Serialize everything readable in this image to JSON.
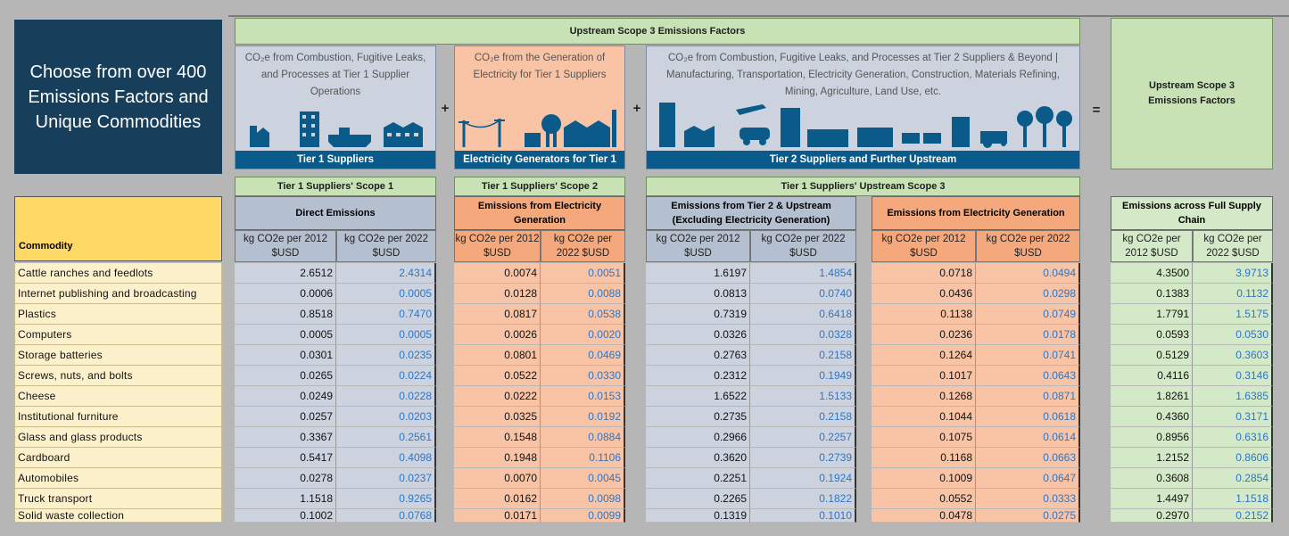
{
  "banner": {
    "text": "Choose from over 400 Emissions Factors and Unique Commodities"
  },
  "upstream_header": "Upstream Scope 3 Emissions Factors",
  "panels": {
    "tier1": {
      "desc": "CO₂e from Combustion, Fugitive Leaks, and Processes at Tier 1 Supplier Operations",
      "foot": "Tier 1 Suppliers"
    },
    "electricity": {
      "desc": "CO₂e from the Generation of Electricity for Tier 1 Suppliers",
      "foot": "Electricity Generators for Tier 1"
    },
    "tier2": {
      "desc": "CO₂e from Combustion, Fugitive Leaks, and Processes at Tier 2 Suppliers & Beyond | Manufacturing, Transportation, Electricity Generation, Construction, Materials Refining, Mining, Agriculture, Land Use, etc.",
      "foot": "Tier 2 Suppliers and Further Upstream"
    }
  },
  "operators": {
    "plus1": "+",
    "plus2": "+",
    "equals": "="
  },
  "total_header": "Upstream Scope 3 Emissions Factors",
  "sections": {
    "scope1": "Tier 1 Suppliers' Scope 1",
    "scope2": "Tier 1 Suppliers' Scope 2",
    "upstream": "Tier 1 Suppliers' Upstream Scope 3"
  },
  "subheaders": {
    "direct": "Direct Emissions",
    "electricity": "Emissions from Electricity Generation",
    "tier2": "Emissions from Tier 2 & Upstream (Excluding Electricity Generation)",
    "elec_gen": "Emissions from Electricity Generation",
    "full": "Emissions across Full Supply Chain"
  },
  "units": {
    "u2012": "kg CO2e per 2012 $USD",
    "u2022": "kg CO2e per 2022 $USD"
  },
  "commodity_label": "Commodity",
  "rows": [
    {
      "name": "Cattle ranches and feedlots",
      "v": [
        "2.6512",
        "2.4314",
        "0.0074",
        "0.0051",
        "1.6197",
        "1.4854",
        "0.0718",
        "0.0494",
        "4.3500",
        "3.9713"
      ]
    },
    {
      "name": "Internet publishing and broadcasting",
      "v": [
        "0.0006",
        "0.0005",
        "0.0128",
        "0.0088",
        "0.0813",
        "0.0740",
        "0.0436",
        "0.0298",
        "0.1383",
        "0.1132"
      ]
    },
    {
      "name": "Plastics",
      "v": [
        "0.8518",
        "0.7470",
        "0.0817",
        "0.0538",
        "0.7319",
        "0.6418",
        "0.1138",
        "0.0749",
        "1.7791",
        "1.5175"
      ]
    },
    {
      "name": "Computers",
      "v": [
        "0.0005",
        "0.0005",
        "0.0026",
        "0.0020",
        "0.0326",
        "0.0328",
        "0.0236",
        "0.0178",
        "0.0593",
        "0.0530"
      ]
    },
    {
      "name": "Storage batteries",
      "v": [
        "0.0301",
        "0.0235",
        "0.0801",
        "0.0469",
        "0.2763",
        "0.2158",
        "0.1264",
        "0.0741",
        "0.5129",
        "0.3603"
      ]
    },
    {
      "name": "Screws, nuts, and bolts",
      "v": [
        "0.0265",
        "0.0224",
        "0.0522",
        "0.0330",
        "0.2312",
        "0.1949",
        "0.1017",
        "0.0643",
        "0.4116",
        "0.3146"
      ]
    },
    {
      "name": "Cheese",
      "v": [
        "0.0249",
        "0.0228",
        "0.0222",
        "0.0153",
        "1.6522",
        "1.5133",
        "0.1268",
        "0.0871",
        "1.8261",
        "1.6385"
      ]
    },
    {
      "name": "Institutional furniture",
      "v": [
        "0.0257",
        "0.0203",
        "0.0325",
        "0.0192",
        "0.2735",
        "0.2158",
        "0.1044",
        "0.0618",
        "0.4360",
        "0.3171"
      ]
    },
    {
      "name": "Glass and glass products",
      "v": [
        "0.3367",
        "0.2561",
        "0.1548",
        "0.0884",
        "0.2966",
        "0.2257",
        "0.1075",
        "0.0614",
        "0.8956",
        "0.6316"
      ]
    },
    {
      "name": "Cardboard",
      "v": [
        "0.5417",
        "0.4098",
        "0.1948",
        "0.1106",
        "0.3620",
        "0.2739",
        "0.1168",
        "0.0663",
        "1.2152",
        "0.8606"
      ]
    },
    {
      "name": "Automobiles",
      "v": [
        "0.0278",
        "0.0237",
        "0.0070",
        "0.0045",
        "0.2251",
        "0.1924",
        "0.1009",
        "0.0647",
        "0.3608",
        "0.2854"
      ]
    },
    {
      "name": "Truck transport",
      "v": [
        "1.1518",
        "0.9265",
        "0.0162",
        "0.0098",
        "0.2265",
        "0.1822",
        "0.0552",
        "0.0333",
        "1.4497",
        "1.1518"
      ]
    },
    {
      "name": "Solid waste collection",
      "v": [
        "0.1002",
        "0.0768",
        "0.0171",
        "0.0099",
        "0.1319",
        "0.1010",
        "0.0478",
        "0.0275",
        "0.2970",
        "0.2152"
      ]
    }
  ],
  "colors": {
    "banner": "#173f5c",
    "panel_foot": "#0a5a8a",
    "value_2022": "#2f75c4"
  }
}
